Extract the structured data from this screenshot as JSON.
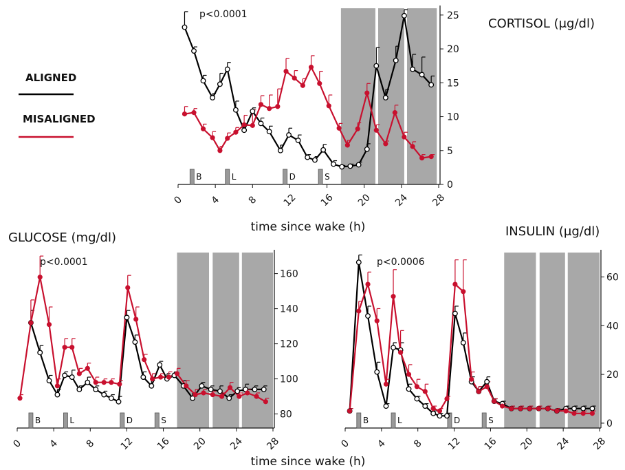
{
  "legend": {
    "aligned_label": "ALIGNED",
    "aligned_color": "#000000",
    "misaligned_label": "MISALIGNED",
    "misaligned_color": "#c8102e"
  },
  "shade_color": "#a8a8a8",
  "meals": [
    {
      "label": "B",
      "time": 1.5
    },
    {
      "label": "L",
      "time": 5.3
    },
    {
      "label": "D",
      "time": 11.5
    },
    {
      "label": "S",
      "time": 15.3
    }
  ],
  "chart_data": [
    {
      "id": "cortisol",
      "type": "line",
      "title": "CORTISOL (μg/dl)",
      "annotation": "p<0.0001",
      "xlabel": "time since wake (h)",
      "ylabel": "",
      "xlim": [
        0,
        28
      ],
      "ylim": [
        0,
        26
      ],
      "xticks": [
        0,
        4,
        8,
        12,
        16,
        20,
        24,
        28
      ],
      "yticks": [
        0,
        5,
        10,
        15,
        20,
        25
      ],
      "shaded_regions": [
        [
          17.5,
          21.2
        ],
        [
          21.5,
          24.3
        ],
        [
          24.6,
          27.8
        ]
      ],
      "series": [
        {
          "name": "ALIGNED",
          "x": [
            0.7,
            1.7,
            2.7,
            3.7,
            4.5,
            5.3,
            6.2,
            7.1,
            8.0,
            8.9,
            9.8,
            11.0,
            11.9,
            12.9,
            13.9,
            14.7,
            15.6,
            16.7,
            17.6,
            18.5,
            19.4,
            20.3,
            21.3,
            22.3,
            23.4,
            24.3,
            25.2,
            26.2,
            27.2
          ],
          "y": [
            23.2,
            19.7,
            15.3,
            12.8,
            14.8,
            17.0,
            11.0,
            8.0,
            10.8,
            9.0,
            7.8,
            5.0,
            7.3,
            6.5,
            4.0,
            3.6,
            5.1,
            3.0,
            2.6,
            2.7,
            2.9,
            5.2,
            17.5,
            12.8,
            18.3,
            24.9,
            17.0,
            16.2,
            14.7
          ],
          "err": [
            2.3,
            0.6,
            0.8,
            0.6,
            1.6,
            1.0,
            1.3,
            0.9,
            0.5,
            0.8,
            0.8,
            0.8,
            1.0,
            0.8,
            0.4,
            0.5,
            0.8,
            0.5,
            0.2,
            0.3,
            0.4,
            0.8,
            2.7,
            1.2,
            2.1,
            0.9,
            2.2,
            2.6,
            1.3
          ]
        },
        {
          "name": "MISALIGNED",
          "x": [
            0.7,
            1.7,
            2.7,
            3.7,
            4.5,
            5.3,
            6.2,
            7.1,
            8.0,
            8.9,
            9.8,
            10.7,
            11.6,
            12.5,
            13.4,
            14.3,
            15.2,
            16.2,
            17.3,
            18.2,
            19.3,
            20.3,
            21.3,
            22.3,
            23.3,
            24.3,
            25.2,
            26.2,
            27.2
          ],
          "y": [
            10.4,
            10.6,
            8.2,
            6.9,
            5.0,
            6.8,
            7.7,
            8.8,
            8.7,
            11.8,
            11.2,
            11.5,
            16.7,
            15.7,
            14.6,
            17.3,
            14.9,
            11.6,
            8.3,
            5.8,
            8.2,
            13.5,
            8.0,
            6.0,
            10.6,
            7.0,
            5.6,
            3.9,
            4.1
          ],
          "err": [
            1.1,
            0.6,
            0.7,
            0.9,
            0.6,
            0.8,
            0.7,
            1.4,
            2.3,
            1.3,
            2.0,
            2.6,
            1.9,
            1.1,
            1.0,
            1.7,
            1.8,
            1.6,
            0.7,
            0.7,
            0.9,
            1.4,
            0.8,
            0.4,
            1.1,
            0.7,
            0.7,
            0.5,
            0.3
          ]
        }
      ]
    },
    {
      "id": "glucose",
      "type": "line",
      "title": "GLUCOSE (mg/dl)",
      "annotation": "p<0.0001",
      "xlabel": "time since wake (h)",
      "ylabel": "",
      "xlim": [
        0,
        28
      ],
      "ylim": [
        72,
        172
      ],
      "xticks": [
        0,
        4,
        8,
        12,
        16,
        20,
        24,
        28
      ],
      "yticks": [
        80,
        100,
        120,
        140,
        160
      ],
      "shaded_regions": [
        [
          17.5,
          21.0
        ],
        [
          21.4,
          24.3
        ],
        [
          24.6,
          28.0
        ]
      ],
      "series": [
        {
          "name": "ALIGNED",
          "x": [
            1.5,
            2.5,
            3.5,
            4.4,
            5.2,
            6.0,
            6.8,
            7.7,
            8.6,
            9.5,
            10.3,
            11.1,
            12.0,
            12.9,
            13.8,
            14.7,
            15.6,
            16.4,
            17.2,
            18.2,
            19.2,
            20.2,
            21.2,
            22.2,
            23.2,
            24.1,
            25.0,
            26.0,
            27.0
          ],
          "y": [
            132,
            115,
            99,
            91,
            102,
            101,
            94,
            98,
            94,
            91,
            89,
            87,
            135,
            121,
            101,
            96,
            108,
            100,
            102,
            96,
            89,
            96,
            94,
            93,
            89,
            93,
            94,
            94,
            94
          ],
          "err": [
            7,
            4,
            3,
            3,
            2,
            4,
            2,
            3,
            2,
            2,
            2,
            3,
            4,
            4,
            3,
            3,
            2,
            3,
            2,
            3,
            3,
            2,
            2,
            3,
            2,
            2,
            3,
            2,
            2
          ]
        },
        {
          "name": "MISALIGNED",
          "x": [
            0.3,
            1.5,
            2.5,
            3.5,
            4.4,
            5.2,
            6.0,
            6.8,
            7.7,
            8.6,
            9.5,
            10.3,
            11.2,
            12.1,
            13.0,
            13.9,
            14.8,
            15.7,
            16.6,
            17.5,
            18.5,
            19.5,
            20.4,
            21.4,
            22.4,
            23.3,
            24.3,
            25.2,
            26.2,
            27.2
          ],
          "y": [
            89,
            132,
            158,
            131,
            96,
            118,
            118,
            103,
            106,
            98,
            98,
            98,
            97,
            152,
            134,
            111,
            100,
            101,
            101,
            103,
            96,
            91,
            92,
            91,
            90,
            95,
            90,
            92,
            90,
            87
          ],
          "err": [
            2,
            13,
            12,
            10,
            4,
            5,
            5,
            3,
            3,
            3,
            2,
            2,
            2,
            7,
            7,
            3,
            3,
            2,
            3,
            3,
            3,
            3,
            2,
            2,
            2,
            3,
            2,
            2,
            2,
            2
          ]
        }
      ]
    },
    {
      "id": "insulin",
      "type": "line",
      "title": "INSULIN (μg/dl)",
      "annotation": "p<0.0006",
      "xlabel": "time since wake (h)",
      "ylabel": "",
      "xlim": [
        0,
        28
      ],
      "ylim": [
        -2,
        70
      ],
      "xticks": [
        0,
        4,
        8,
        12,
        16,
        20,
        24,
        28
      ],
      "yticks": [
        0,
        20,
        40,
        60
      ],
      "shaded_regions": [
        [
          17.5,
          21.0
        ],
        [
          21.4,
          24.2
        ],
        [
          24.5,
          28.0
        ]
      ],
      "series": [
        {
          "name": "ALIGNED",
          "x": [
            0.5,
            1.5,
            2.5,
            3.5,
            4.5,
            5.3,
            6.1,
            7.0,
            7.9,
            8.8,
            9.7,
            10.4,
            11.2,
            12.1,
            13.0,
            13.9,
            14.7,
            15.6,
            16.4,
            17.3,
            18.3,
            19.3,
            20.3,
            21.3,
            22.3,
            23.3,
            24.3,
            25.2,
            26.2,
            27.2
          ],
          "y": [
            5,
            66,
            44,
            21,
            7,
            31,
            30,
            14,
            10,
            7,
            4,
            3,
            3,
            45,
            33,
            17,
            13,
            17,
            9,
            8,
            6,
            6,
            6,
            6,
            6,
            5,
            6,
            6,
            6,
            6
          ],
          "err": [
            1,
            3,
            4,
            4,
            1,
            2,
            3,
            2,
            1,
            1,
            1,
            1,
            1,
            3,
            4,
            2,
            2,
            2,
            1,
            1,
            1,
            1,
            1,
            1,
            1,
            1,
            1,
            1,
            1,
            1
          ]
        },
        {
          "name": "MISALIGNED",
          "x": [
            0.5,
            1.5,
            2.5,
            3.5,
            4.5,
            5.3,
            6.1,
            7.0,
            7.9,
            8.8,
            9.7,
            10.4,
            11.2,
            12.1,
            13.0,
            13.9,
            14.7,
            15.6,
            16.4,
            17.3,
            18.3,
            19.3,
            20.3,
            21.3,
            22.3,
            23.3,
            24.3,
            25.2,
            26.2,
            27.2
          ],
          "y": [
            5,
            46,
            57,
            42,
            16,
            52,
            29,
            20,
            15,
            13,
            6,
            5,
            10,
            57,
            54,
            18,
            13,
            15,
            9,
            7,
            6,
            6,
            6,
            6,
            6,
            5,
            5,
            4,
            4,
            4
          ],
          "err": [
            1,
            4,
            5,
            5,
            2,
            11,
            9,
            4,
            3,
            3,
            1,
            1,
            1,
            10,
            13,
            3,
            2,
            2,
            1,
            1,
            1,
            1,
            1,
            1,
            1,
            1,
            1,
            1,
            1,
            1
          ]
        }
      ]
    }
  ]
}
